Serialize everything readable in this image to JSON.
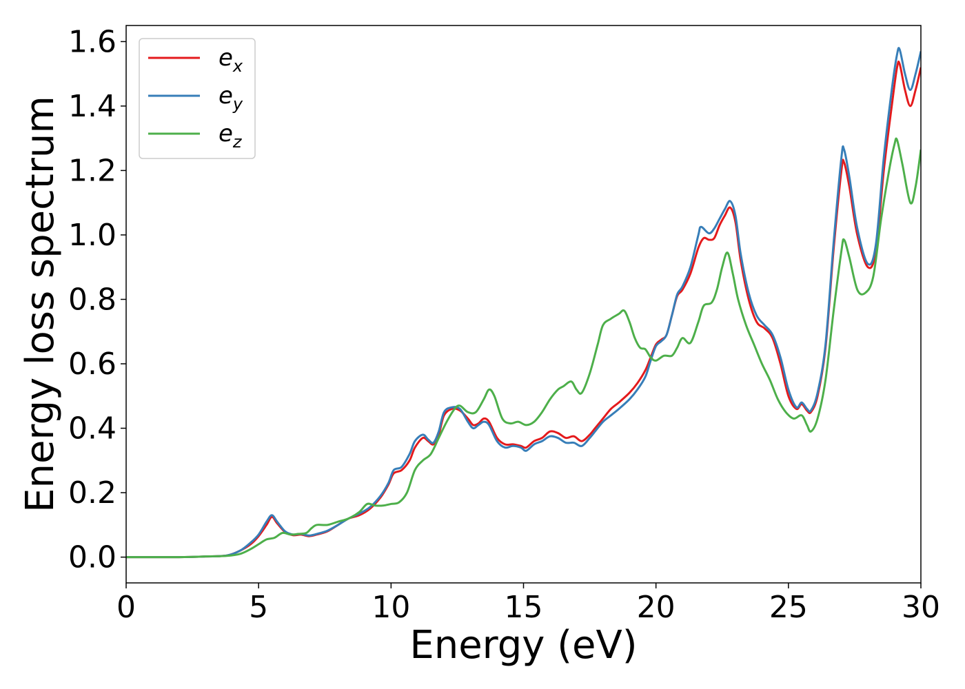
{
  "chart_data": {
    "type": "line",
    "xlabel": "Energy (eV)",
    "ylabel": "Energy loss spectrum",
    "xlim": [
      0,
      30
    ],
    "ylim": [
      -0.08,
      1.65
    ],
    "xticks": [
      0,
      5,
      10,
      15,
      20,
      25,
      30
    ],
    "xtick_labels": [
      "0",
      "5",
      "10",
      "15",
      "20",
      "25",
      "30"
    ],
    "yticks": [
      0.0,
      0.2,
      0.4,
      0.6,
      0.8,
      1.0,
      1.2,
      1.4,
      1.6
    ],
    "ytick_labels": [
      "0.0",
      "0.2",
      "0.4",
      "0.6",
      "0.8",
      "1.0",
      "1.2",
      "1.4",
      "1.6"
    ],
    "grid": false,
    "legend_position": "top-left",
    "series": [
      {
        "name": "e_x",
        "legend_base": "e",
        "legend_sub": "x",
        "color": "#e41a1c",
        "points": [
          [
            0,
            0.0
          ],
          [
            2,
            0.0
          ],
          [
            3,
            0.002
          ],
          [
            3.8,
            0.005
          ],
          [
            4.3,
            0.02
          ],
          [
            4.7,
            0.04
          ],
          [
            5.0,
            0.065
          ],
          [
            5.3,
            0.1
          ],
          [
            5.5,
            0.125
          ],
          [
            5.7,
            0.105
          ],
          [
            6.0,
            0.078
          ],
          [
            6.3,
            0.068
          ],
          [
            6.6,
            0.07
          ],
          [
            6.9,
            0.065
          ],
          [
            7.2,
            0.07
          ],
          [
            7.6,
            0.08
          ],
          [
            8.0,
            0.1
          ],
          [
            8.4,
            0.12
          ],
          [
            8.8,
            0.13
          ],
          [
            9.2,
            0.15
          ],
          [
            9.6,
            0.185
          ],
          [
            9.9,
            0.225
          ],
          [
            10.1,
            0.26
          ],
          [
            10.4,
            0.27
          ],
          [
            10.7,
            0.3
          ],
          [
            10.9,
            0.34
          ],
          [
            11.2,
            0.37
          ],
          [
            11.4,
            0.36
          ],
          [
            11.6,
            0.35
          ],
          [
            11.8,
            0.38
          ],
          [
            12.0,
            0.44
          ],
          [
            12.3,
            0.46
          ],
          [
            12.6,
            0.455
          ],
          [
            12.9,
            0.43
          ],
          [
            13.1,
            0.41
          ],
          [
            13.3,
            0.415
          ],
          [
            13.5,
            0.43
          ],
          [
            13.7,
            0.42
          ],
          [
            14.0,
            0.37
          ],
          [
            14.3,
            0.35
          ],
          [
            14.6,
            0.35
          ],
          [
            14.9,
            0.345
          ],
          [
            15.1,
            0.34
          ],
          [
            15.4,
            0.36
          ],
          [
            15.7,
            0.37
          ],
          [
            16.0,
            0.39
          ],
          [
            16.3,
            0.385
          ],
          [
            16.6,
            0.37
          ],
          [
            16.9,
            0.375
          ],
          [
            17.2,
            0.36
          ],
          [
            17.5,
            0.38
          ],
          [
            17.7,
            0.4
          ],
          [
            18.0,
            0.43
          ],
          [
            18.3,
            0.46
          ],
          [
            18.6,
            0.48
          ],
          [
            19.0,
            0.51
          ],
          [
            19.3,
            0.54
          ],
          [
            19.6,
            0.58
          ],
          [
            19.8,
            0.62
          ],
          [
            20.0,
            0.66
          ],
          [
            20.2,
            0.675
          ],
          [
            20.4,
            0.69
          ],
          [
            20.6,
            0.75
          ],
          [
            20.8,
            0.81
          ],
          [
            21.0,
            0.83
          ],
          [
            21.3,
            0.88
          ],
          [
            21.6,
            0.96
          ],
          [
            21.8,
            0.99
          ],
          [
            22.0,
            0.985
          ],
          [
            22.2,
            0.99
          ],
          [
            22.4,
            1.03
          ],
          [
            22.6,
            1.06
          ],
          [
            22.8,
            1.085
          ],
          [
            23.0,
            1.04
          ],
          [
            23.2,
            0.92
          ],
          [
            23.5,
            0.8
          ],
          [
            23.8,
            0.73
          ],
          [
            24.1,
            0.71
          ],
          [
            24.4,
            0.68
          ],
          [
            24.7,
            0.6
          ],
          [
            25.0,
            0.5
          ],
          [
            25.3,
            0.46
          ],
          [
            25.5,
            0.475
          ],
          [
            25.7,
            0.455
          ],
          [
            25.85,
            0.45
          ],
          [
            26.1,
            0.5
          ],
          [
            26.4,
            0.65
          ],
          [
            26.7,
            0.95
          ],
          [
            27.0,
            1.2
          ],
          [
            27.1,
            1.225
          ],
          [
            27.3,
            1.15
          ],
          [
            27.6,
            1.0
          ],
          [
            28.0,
            0.9
          ],
          [
            28.3,
            0.95
          ],
          [
            28.6,
            1.2
          ],
          [
            28.9,
            1.4
          ],
          [
            29.1,
            1.52
          ],
          [
            29.2,
            1.53
          ],
          [
            29.4,
            1.45
          ],
          [
            29.6,
            1.4
          ],
          [
            29.8,
            1.45
          ],
          [
            30.0,
            1.52
          ]
        ]
      },
      {
        "name": "e_y",
        "legend_base": "e",
        "legend_sub": "y",
        "color": "#377eb8",
        "points": [
          [
            0,
            0.0
          ],
          [
            2,
            0.0
          ],
          [
            3,
            0.002
          ],
          [
            3.8,
            0.005
          ],
          [
            4.3,
            0.02
          ],
          [
            4.7,
            0.045
          ],
          [
            5.0,
            0.07
          ],
          [
            5.3,
            0.11
          ],
          [
            5.5,
            0.13
          ],
          [
            5.7,
            0.11
          ],
          [
            6.0,
            0.08
          ],
          [
            6.3,
            0.07
          ],
          [
            6.6,
            0.072
          ],
          [
            6.9,
            0.067
          ],
          [
            7.2,
            0.072
          ],
          [
            7.6,
            0.082
          ],
          [
            8.0,
            0.1
          ],
          [
            8.4,
            0.12
          ],
          [
            8.8,
            0.135
          ],
          [
            9.2,
            0.155
          ],
          [
            9.6,
            0.19
          ],
          [
            9.9,
            0.23
          ],
          [
            10.1,
            0.27
          ],
          [
            10.4,
            0.28
          ],
          [
            10.7,
            0.32
          ],
          [
            10.9,
            0.36
          ],
          [
            11.2,
            0.38
          ],
          [
            11.4,
            0.365
          ],
          [
            11.6,
            0.355
          ],
          [
            11.8,
            0.39
          ],
          [
            12.0,
            0.45
          ],
          [
            12.3,
            0.465
          ],
          [
            12.6,
            0.46
          ],
          [
            12.9,
            0.42
          ],
          [
            13.1,
            0.4
          ],
          [
            13.3,
            0.41
          ],
          [
            13.5,
            0.42
          ],
          [
            13.7,
            0.41
          ],
          [
            14.0,
            0.36
          ],
          [
            14.3,
            0.34
          ],
          [
            14.6,
            0.345
          ],
          [
            14.9,
            0.34
          ],
          [
            15.1,
            0.33
          ],
          [
            15.4,
            0.35
          ],
          [
            15.7,
            0.36
          ],
          [
            16.0,
            0.375
          ],
          [
            16.3,
            0.37
          ],
          [
            16.6,
            0.355
          ],
          [
            16.9,
            0.355
          ],
          [
            17.2,
            0.345
          ],
          [
            17.5,
            0.37
          ],
          [
            17.7,
            0.39
          ],
          [
            18.0,
            0.42
          ],
          [
            18.3,
            0.44
          ],
          [
            18.6,
            0.46
          ],
          [
            19.0,
            0.49
          ],
          [
            19.3,
            0.52
          ],
          [
            19.6,
            0.56
          ],
          [
            19.8,
            0.61
          ],
          [
            20.0,
            0.655
          ],
          [
            20.2,
            0.67
          ],
          [
            20.4,
            0.69
          ],
          [
            20.6,
            0.75
          ],
          [
            20.8,
            0.815
          ],
          [
            21.0,
            0.84
          ],
          [
            21.3,
            0.9
          ],
          [
            21.6,
            1.0
          ],
          [
            21.7,
            1.025
          ],
          [
            22.0,
            1.005
          ],
          [
            22.2,
            1.02
          ],
          [
            22.4,
            1.05
          ],
          [
            22.6,
            1.08
          ],
          [
            22.8,
            1.105
          ],
          [
            23.0,
            1.06
          ],
          [
            23.2,
            0.94
          ],
          [
            23.5,
            0.82
          ],
          [
            23.8,
            0.75
          ],
          [
            24.1,
            0.72
          ],
          [
            24.4,
            0.69
          ],
          [
            24.7,
            0.62
          ],
          [
            25.0,
            0.52
          ],
          [
            25.3,
            0.465
          ],
          [
            25.5,
            0.48
          ],
          [
            25.7,
            0.46
          ],
          [
            25.85,
            0.455
          ],
          [
            26.1,
            0.51
          ],
          [
            26.4,
            0.66
          ],
          [
            26.7,
            0.97
          ],
          [
            27.0,
            1.24
          ],
          [
            27.1,
            1.265
          ],
          [
            27.3,
            1.18
          ],
          [
            27.6,
            1.02
          ],
          [
            28.0,
            0.91
          ],
          [
            28.3,
            0.97
          ],
          [
            28.6,
            1.24
          ],
          [
            28.9,
            1.45
          ],
          [
            29.1,
            1.56
          ],
          [
            29.2,
            1.575
          ],
          [
            29.4,
            1.5
          ],
          [
            29.6,
            1.45
          ],
          [
            29.8,
            1.5
          ],
          [
            30.0,
            1.57
          ]
        ]
      },
      {
        "name": "e_z",
        "legend_base": "e",
        "legend_sub": "z",
        "color": "#4daf4a",
        "points": [
          [
            0,
            0.0
          ],
          [
            2,
            0.0
          ],
          [
            3,
            0.002
          ],
          [
            3.8,
            0.004
          ],
          [
            4.3,
            0.01
          ],
          [
            4.7,
            0.025
          ],
          [
            5.0,
            0.04
          ],
          [
            5.3,
            0.055
          ],
          [
            5.6,
            0.06
          ],
          [
            5.9,
            0.075
          ],
          [
            6.2,
            0.07
          ],
          [
            6.5,
            0.072
          ],
          [
            6.8,
            0.075
          ],
          [
            7.0,
            0.09
          ],
          [
            7.2,
            0.1
          ],
          [
            7.6,
            0.1
          ],
          [
            8.0,
            0.11
          ],
          [
            8.4,
            0.12
          ],
          [
            8.8,
            0.14
          ],
          [
            9.1,
            0.165
          ],
          [
            9.4,
            0.16
          ],
          [
            9.7,
            0.16
          ],
          [
            10.0,
            0.165
          ],
          [
            10.3,
            0.17
          ],
          [
            10.6,
            0.2
          ],
          [
            10.9,
            0.27
          ],
          [
            11.2,
            0.3
          ],
          [
            11.5,
            0.32
          ],
          [
            11.8,
            0.37
          ],
          [
            12.1,
            0.42
          ],
          [
            12.4,
            0.46
          ],
          [
            12.6,
            0.47
          ],
          [
            12.9,
            0.45
          ],
          [
            13.2,
            0.45
          ],
          [
            13.5,
            0.49
          ],
          [
            13.7,
            0.52
          ],
          [
            13.9,
            0.5
          ],
          [
            14.2,
            0.43
          ],
          [
            14.5,
            0.415
          ],
          [
            14.8,
            0.42
          ],
          [
            15.1,
            0.41
          ],
          [
            15.4,
            0.42
          ],
          [
            15.7,
            0.45
          ],
          [
            16.0,
            0.49
          ],
          [
            16.3,
            0.52
          ],
          [
            16.5,
            0.53
          ],
          [
            16.8,
            0.545
          ],
          [
            17.0,
            0.52
          ],
          [
            17.2,
            0.51
          ],
          [
            17.5,
            0.57
          ],
          [
            17.8,
            0.66
          ],
          [
            18.0,
            0.72
          ],
          [
            18.3,
            0.74
          ],
          [
            18.6,
            0.755
          ],
          [
            18.8,
            0.765
          ],
          [
            19.0,
            0.73
          ],
          [
            19.2,
            0.68
          ],
          [
            19.4,
            0.65
          ],
          [
            19.6,
            0.645
          ],
          [
            19.8,
            0.62
          ],
          [
            20.0,
            0.61
          ],
          [
            20.3,
            0.625
          ],
          [
            20.6,
            0.625
          ],
          [
            20.8,
            0.65
          ],
          [
            21.0,
            0.68
          ],
          [
            21.3,
            0.665
          ],
          [
            21.6,
            0.73
          ],
          [
            21.8,
            0.78
          ],
          [
            22.1,
            0.79
          ],
          [
            22.3,
            0.83
          ],
          [
            22.5,
            0.9
          ],
          [
            22.7,
            0.945
          ],
          [
            22.9,
            0.88
          ],
          [
            23.1,
            0.8
          ],
          [
            23.4,
            0.72
          ],
          [
            23.7,
            0.66
          ],
          [
            24.0,
            0.6
          ],
          [
            24.3,
            0.55
          ],
          [
            24.6,
            0.49
          ],
          [
            24.9,
            0.45
          ],
          [
            25.2,
            0.43
          ],
          [
            25.5,
            0.44
          ],
          [
            25.7,
            0.41
          ],
          [
            25.85,
            0.39
          ],
          [
            26.1,
            0.43
          ],
          [
            26.4,
            0.55
          ],
          [
            26.7,
            0.76
          ],
          [
            27.0,
            0.95
          ],
          [
            27.1,
            0.985
          ],
          [
            27.3,
            0.93
          ],
          [
            27.6,
            0.83
          ],
          [
            27.9,
            0.82
          ],
          [
            28.2,
            0.87
          ],
          [
            28.5,
            1.05
          ],
          [
            28.8,
            1.2
          ],
          [
            29.0,
            1.28
          ],
          [
            29.1,
            1.295
          ],
          [
            29.3,
            1.22
          ],
          [
            29.6,
            1.1
          ],
          [
            29.8,
            1.15
          ],
          [
            30.0,
            1.265
          ]
        ]
      }
    ]
  }
}
